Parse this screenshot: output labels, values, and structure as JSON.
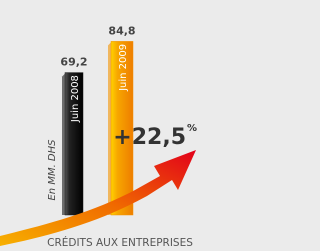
{
  "chart_data": {
    "type": "bar",
    "categories": [
      "Juin 2008",
      "Juin 2009"
    ],
    "values": [
      69.2,
      84.8
    ],
    "value_labels": [
      "69,2",
      "84,8"
    ],
    "colors": [
      "#1a1a1a",
      "#f39200"
    ],
    "unit_label": "En MM. DHS",
    "growth_label": "+22,5",
    "growth_unit": "%",
    "caption": "CRÉDITS AUX ENTREPRISES"
  }
}
